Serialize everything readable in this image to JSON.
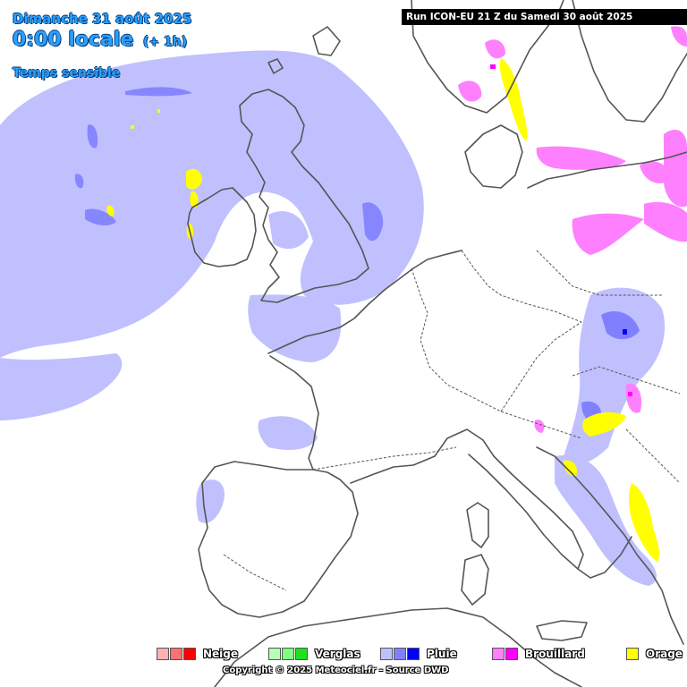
{
  "header": {
    "date": "Dimanche 31 août 2025",
    "time": "0:00 locale",
    "offset": "(+ 1h)",
    "mode": "Temps sensible"
  },
  "run_banner": "Run ICON-EU 21 Z du Samedi 30 août 2025",
  "legend": [
    {
      "label": "Neige",
      "colors": [
        "#ffb0b0",
        "#ff7070",
        "#ff0000"
      ]
    },
    {
      "label": "Verglas",
      "colors": [
        "#b8ffb8",
        "#80ff80",
        "#20e020"
      ]
    },
    {
      "label": "Pluie",
      "colors": [
        "#c0c0ff",
        "#8080ff",
        "#0000ff"
      ]
    },
    {
      "label": "Brouillard",
      "colors": [
        "#ff80ff",
        "#ff00ff"
      ]
    },
    {
      "label": "Orage",
      "colors": [
        "#ffff00"
      ]
    }
  ],
  "copyright": "Copyright © 2025 Meteociel.fr - Source DWD",
  "colors": {
    "rain_light": "#c0c0ff",
    "rain_medium": "#8080ff",
    "rain_heavy": "#0000ff",
    "fog": "#ff80ff",
    "storm": "#ffff00",
    "coast": "#555555",
    "title": "#2aa0ff"
  }
}
